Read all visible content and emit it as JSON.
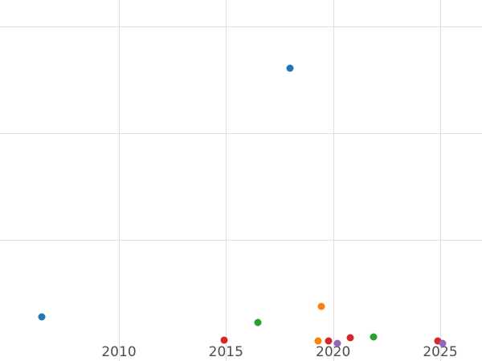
{
  "chart_data": {
    "type": "scatter",
    "title": "",
    "xlabel": "",
    "ylabel": "",
    "grid": true,
    "legend": "none",
    "x_range": [
      2004.45,
      2026.95
    ],
    "y_range": [
      -0.135,
      3.25
    ],
    "x_ticks": [
      2010,
      2015,
      2020,
      2025
    ],
    "x_tick_labels": [
      "2010",
      "2015",
      "2020",
      "2025"
    ],
    "y_gridlines": [
      1,
      2,
      3
    ],
    "y_tick_labels": [],
    "series": [
      {
        "name": "blue",
        "color": "#1f77b4",
        "points": [
          [
            2006.4,
            0.28
          ],
          [
            2018.0,
            2.61
          ]
        ]
      },
      {
        "name": "orange",
        "color": "#ff7f0e",
        "points": [
          [
            2019.3,
            0.05
          ],
          [
            2019.45,
            0.38
          ]
        ]
      },
      {
        "name": "green",
        "color": "#2ca02c",
        "points": [
          [
            2016.5,
            0.23
          ],
          [
            2021.9,
            0.09
          ]
        ]
      },
      {
        "name": "red",
        "color": "#d62728",
        "points": [
          [
            2014.9,
            0.06
          ],
          [
            2019.8,
            0.05
          ],
          [
            2020.8,
            0.08
          ],
          [
            2024.9,
            0.05
          ]
        ]
      },
      {
        "name": "purple",
        "color": "#9467bd",
        "points": [
          [
            2020.2,
            0.03
          ],
          [
            2025.1,
            0.03
          ]
        ]
      }
    ]
  }
}
